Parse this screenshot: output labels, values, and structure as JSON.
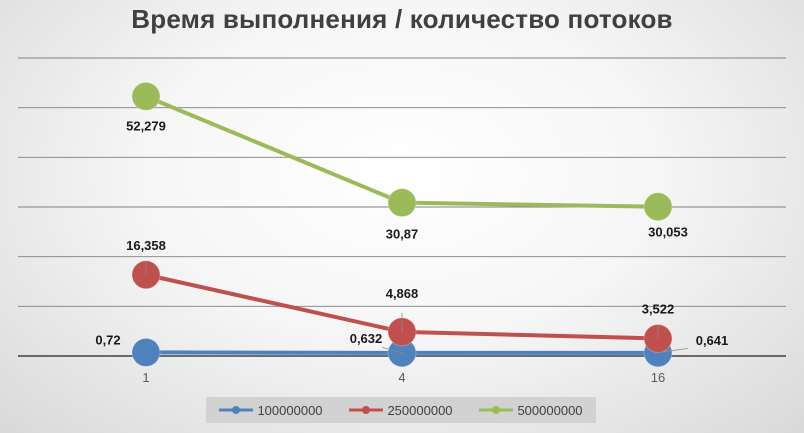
{
  "chart_data": {
    "type": "line",
    "title": "Время выполнения / количество потоков",
    "categories": [
      "1",
      "4",
      "16"
    ],
    "series": [
      {
        "name": "100000000",
        "color": "#4f81bd",
        "values": [
          0.72,
          0.632,
          0.641
        ],
        "labels": [
          "0,72",
          "0,632",
          "0,641"
        ]
      },
      {
        "name": "250000000",
        "color": "#c0504d",
        "values": [
          16.358,
          4.868,
          3.522
        ],
        "labels": [
          "16,358",
          "4,868",
          "3,522"
        ]
      },
      {
        "name": "500000000",
        "color": "#9bbb59",
        "values": [
          52.279,
          30.87,
          30.053
        ],
        "labels": [
          "52,279",
          "30,87",
          "30,053"
        ]
      }
    ],
    "ylim": [
      0,
      60
    ],
    "grid": true,
    "legend_position": "bottom"
  }
}
